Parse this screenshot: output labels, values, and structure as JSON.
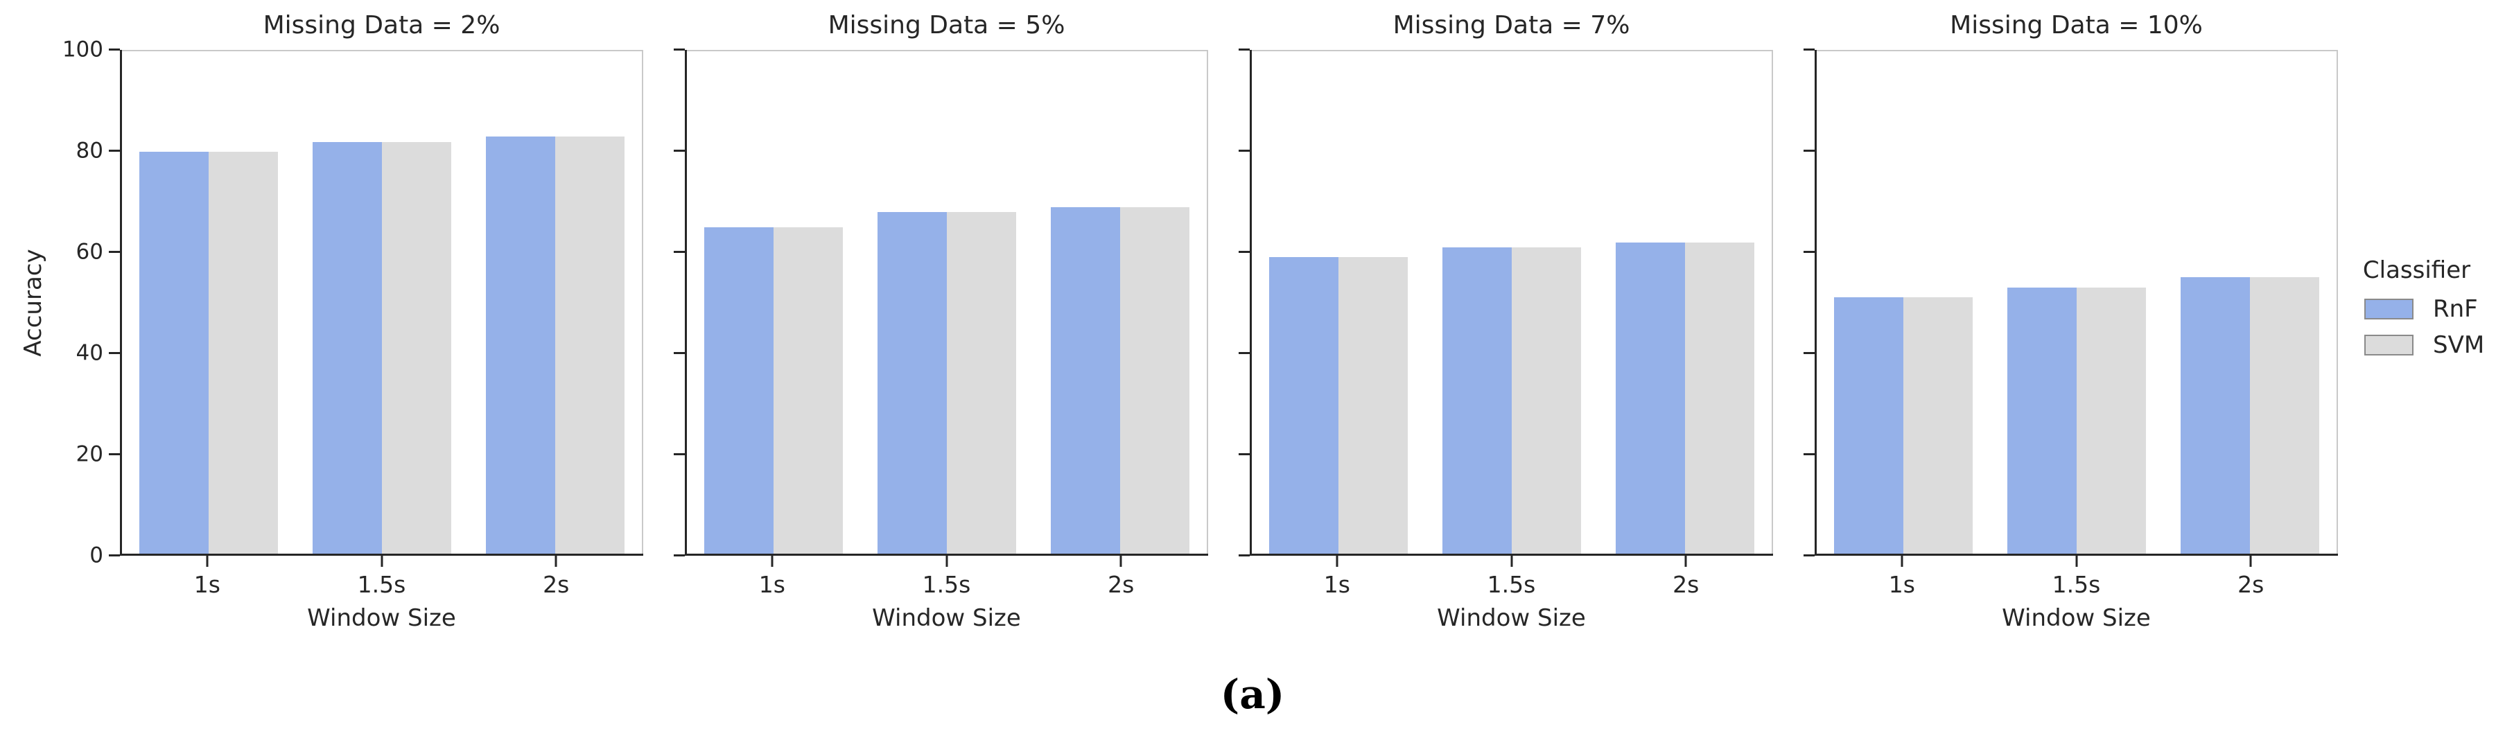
{
  "figure": {
    "background": "#ffffff",
    "caption": "(a)"
  },
  "chart_data": {
    "type": "bar",
    "facet_variable": "Missing Data",
    "categories": [
      "1s",
      "1.5s",
      "2s"
    ],
    "xlabel": "Window Size",
    "ylabel": "Accuracy",
    "ylim": [
      0,
      100
    ],
    "yticks": [
      0,
      20,
      40,
      60,
      80,
      100
    ],
    "grid": false,
    "panels": [
      {
        "title": "Missing Data = 2%",
        "series": [
          {
            "name": "RnF",
            "values": [
              80,
              82,
              83
            ]
          },
          {
            "name": "SVM",
            "values": [
              80,
              82,
              83
            ]
          }
        ]
      },
      {
        "title": "Missing Data = 5%",
        "series": [
          {
            "name": "RnF",
            "values": [
              65,
              68,
              69
            ]
          },
          {
            "name": "SVM",
            "values": [
              65,
              68,
              69
            ]
          }
        ]
      },
      {
        "title": "Missing Data = 7%",
        "series": [
          {
            "name": "RnF",
            "values": [
              59,
              61,
              62
            ]
          },
          {
            "name": "SVM",
            "values": [
              59,
              61,
              62
            ]
          }
        ]
      },
      {
        "title": "Missing Data = 10%",
        "series": [
          {
            "name": "RnF",
            "values": [
              51,
              53,
              55
            ]
          },
          {
            "name": "SVM",
            "values": [
              51,
              53,
              55
            ]
          }
        ]
      }
    ],
    "legend": {
      "title": "Classifier",
      "position": "right",
      "entries": [
        {
          "label": "RnF",
          "color": "#95b1e9"
        },
        {
          "label": "SVM",
          "color": "#dcdcdc"
        }
      ]
    },
    "caption": "(a)"
  }
}
